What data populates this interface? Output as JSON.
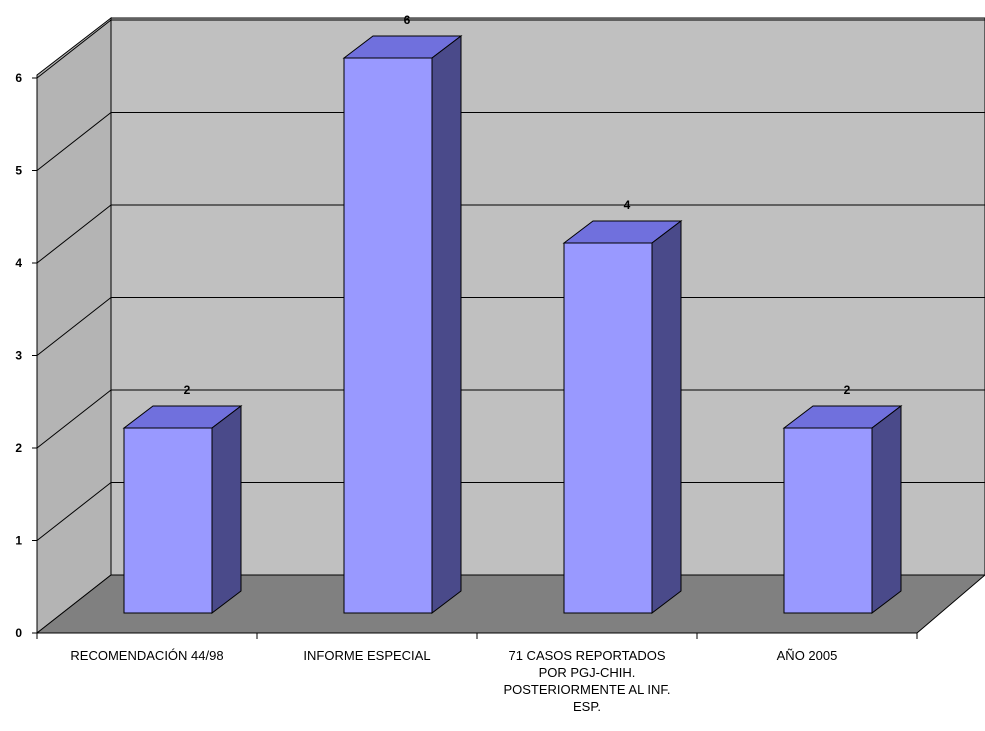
{
  "chart_data": {
    "type": "bar",
    "categories": [
      "RECOMENDACIÓN 44/98",
      "INFORME  ESPECIAL",
      "71 CASOS REPORTADOS\nPOR PGJ-CHIH.\nPOSTERIORMENTE AL INF.\nESP.",
      "AÑO 2005"
    ],
    "values": [
      2,
      6,
      4,
      2
    ],
    "data_labels": [
      "2",
      "6",
      "4",
      "2"
    ],
    "title": "",
    "xlabel": "",
    "ylabel": "",
    "ylim": [
      0,
      6
    ],
    "yticks": [
      "0",
      "1",
      "2",
      "3",
      "4",
      "5",
      "6"
    ],
    "grid": true,
    "legend": "none",
    "style": "3d-column",
    "colors": {
      "bar_front": "#9999ff",
      "bar_top": "#7070dd",
      "bar_side": "#4a4a8a",
      "back_wall": "#c0c0c0",
      "side_wall": "#b4b4b4",
      "floor": "#808080",
      "gridline": "#000000"
    }
  }
}
